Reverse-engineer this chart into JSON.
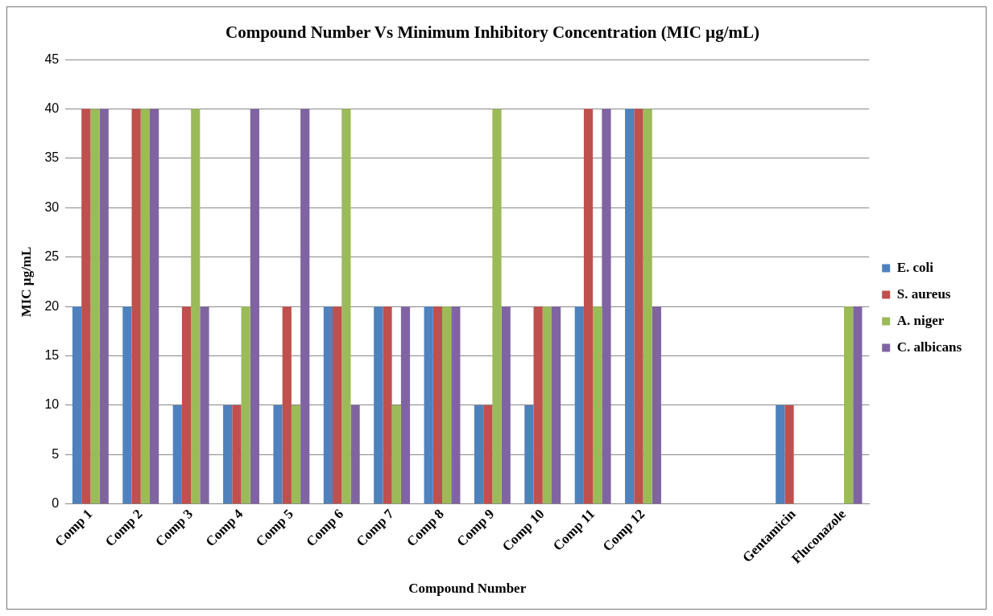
{
  "chart_data": {
    "type": "bar",
    "title": "Compound Number Vs Minimum Inhibitory Concentration (MIC µg/mL)",
    "xlabel": "Compound Number",
    "ylabel": "MIC µg/mL",
    "categories": [
      "Comp 1",
      "Comp 2",
      "Comp 3",
      "Comp 4",
      "Comp 5",
      "Comp 6",
      "Comp 7",
      "Comp 8",
      "Comp 9",
      "Comp 10",
      "Comp 11",
      "Comp 12",
      null,
      null,
      "Gentamicin",
      "Fluconazole"
    ],
    "series": [
      {
        "name": "E. coli",
        "color": "#4f81bd",
        "values": [
          20,
          20,
          10,
          10,
          10,
          20,
          20,
          20,
          10,
          10,
          20,
          40,
          null,
          null,
          10,
          null
        ]
      },
      {
        "name": "S. aureus",
        "color": "#c0504d",
        "values": [
          40,
          40,
          20,
          10,
          20,
          20,
          20,
          20,
          10,
          20,
          40,
          40,
          null,
          null,
          10,
          null
        ]
      },
      {
        "name": "A. niger",
        "color": "#9bbb59",
        "values": [
          40,
          40,
          40,
          20,
          10,
          40,
          10,
          20,
          40,
          20,
          20,
          40,
          null,
          null,
          null,
          20
        ]
      },
      {
        "name": "C. albicans",
        "color": "#8064a2",
        "values": [
          40,
          40,
          20,
          40,
          40,
          10,
          20,
          20,
          20,
          20,
          40,
          20,
          null,
          null,
          null,
          20
        ]
      }
    ],
    "ylim": [
      0,
      45
    ],
    "yticks": [
      0,
      5,
      10,
      15,
      20,
      25,
      30,
      35,
      40,
      45
    ],
    "grid": "y",
    "legend": "right"
  }
}
